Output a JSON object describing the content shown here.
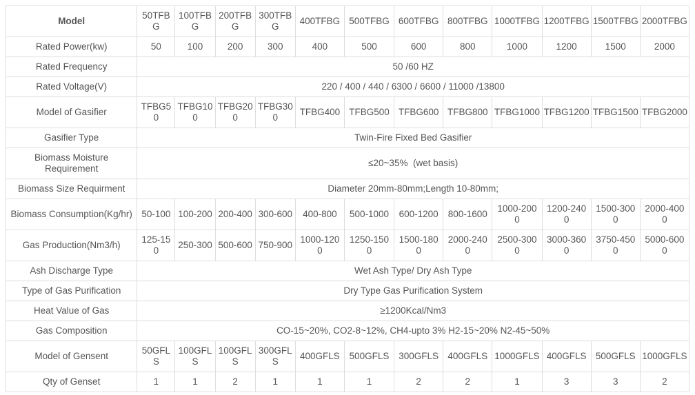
{
  "colors": {
    "text": "#555555",
    "border": "#dddddd",
    "background": "#ffffff"
  },
  "table": {
    "column_count": 13,
    "rows": [
      {
        "label": "Model",
        "cells": [
          "50TFBG",
          "100TFB\nG",
          "200TFB\nG",
          "300TFB\nG",
          "400TFBG",
          "500TFBG",
          "600TFBG",
          "800TFBG",
          "1000TFBG",
          "1200TFBG",
          "1500TFBG",
          "2000TFBG"
        ]
      },
      {
        "label": "Rated Power(kw)",
        "cells": [
          "50",
          "100",
          "200",
          "300",
          "400",
          "500",
          "600",
          "800",
          "1000",
          "1200",
          "1500",
          "2000"
        ]
      },
      {
        "label": "Rated Frequency",
        "value": "50 /60 HZ"
      },
      {
        "label": "Rated Voltage(V)",
        "value": "220 / 400 / 440 / 6300 / 6600 / 11000 /13800"
      },
      {
        "label": "Model of Gasifier",
        "cells": [
          "TFBG50",
          "TFBG10\n0",
          "TFBG20\n0",
          "TFBG30\n0",
          "TFBG400",
          "TFBG500",
          "TFBG600",
          "TFBG800",
          "TFBG1000",
          "TFBG1200",
          "TFBG1500",
          "TFBG2000"
        ]
      },
      {
        "label": "Gasifier Type",
        "value": "Twin-Fire Fixed Bed Gasifier"
      },
      {
        "label": "Biomass Moisture\nRequirement",
        "value": "≤20~35%  (wet basis)"
      },
      {
        "label": "Biomass Size Requirment",
        "value": "Diameter 20mm-80mm;Length 10-80mm;"
      },
      {
        "label": "Biomass Consumption(Kg/hr)",
        "cells": [
          "50-100",
          "100-200",
          "200-400",
          "300-600",
          "400-800",
          "500-1000",
          "600-1200",
          "800-1600",
          "1000-200\n0",
          "1200-240\n0",
          "1500-300\n0",
          "2000-400\n0"
        ]
      },
      {
        "label": "Gas Production(Nm3/h)",
        "cells": [
          "125-15\n0",
          "250-300",
          "500-600",
          "750-900",
          "1000-120\n0",
          "1250-150\n0",
          "1500-180\n0",
          "2000-240\n0",
          "2500-300\n0",
          "3000-360\n0",
          "3750-450\n0",
          "5000-600\n0"
        ]
      },
      {
        "label": "Ash Discharge Type",
        "value": "Wet Ash Type/ Dry Ash Type"
      },
      {
        "label": "Type of Gas Purification",
        "value": "Dry Type Gas Purification System"
      },
      {
        "label": "Heat Value of Gas",
        "value": "≥1200Kcal/Nm3"
      },
      {
        "label": "Gas Composition",
        "value": "CO-15~20%, CO2-8~12%, CH4-upto 3% H2-15~20% N2-45~50%"
      },
      {
        "label": "Model of Gensent",
        "cells": [
          "50GFLS",
          "100GFLS",
          "100GFLS",
          "300GFLS",
          "400GFLS",
          "500GFLS",
          "300GFLS",
          "400GFLS",
          "1000GFLS",
          "400GFLS",
          "500GFLS",
          "1000GFLS"
        ]
      },
      {
        "label": "Qty of Genset",
        "cells": [
          "1",
          "1",
          "2",
          "1",
          "1",
          "1",
          "2",
          "2",
          "1",
          "3",
          "3",
          "2"
        ]
      }
    ]
  }
}
